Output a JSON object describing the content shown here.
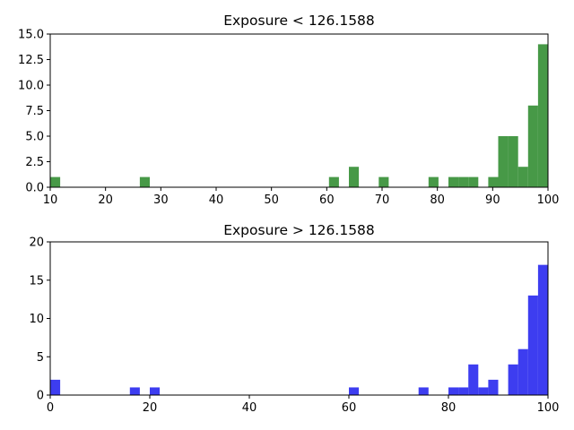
{
  "chart_data": [
    {
      "type": "bar",
      "title": "Exposure < 126.1588",
      "xlabel": "",
      "ylabel": "",
      "color": "#2e8b2e",
      "xlim": [
        10,
        100
      ],
      "ylim": [
        0,
        15
      ],
      "xticks": [
        10,
        20,
        30,
        40,
        50,
        60,
        70,
        80,
        90,
        100
      ],
      "yticks": [
        "0.0",
        "2.5",
        "5.0",
        "7.5",
        "10.0",
        "12.5",
        "15.0"
      ],
      "bin_width": 1.8,
      "bins": [
        {
          "x0": 10.0,
          "count": 1
        },
        {
          "x0": 26.2,
          "count": 1
        },
        {
          "x0": 60.4,
          "count": 1
        },
        {
          "x0": 64.0,
          "count": 2
        },
        {
          "x0": 69.4,
          "count": 1
        },
        {
          "x0": 78.4,
          "count": 1
        },
        {
          "x0": 82.0,
          "count": 1
        },
        {
          "x0": 83.8,
          "count": 1
        },
        {
          "x0": 85.6,
          "count": 1
        },
        {
          "x0": 89.2,
          "count": 1
        },
        {
          "x0": 91.0,
          "count": 5
        },
        {
          "x0": 92.8,
          "count": 5
        },
        {
          "x0": 94.6,
          "count": 2
        },
        {
          "x0": 96.4,
          "count": 8
        },
        {
          "x0": 98.2,
          "count": 14
        }
      ]
    },
    {
      "type": "bar",
      "title": "Exposure > 126.1588",
      "xlabel": "",
      "ylabel": "",
      "color": "#2222ee",
      "xlim": [
        0,
        100
      ],
      "ylim": [
        0,
        20
      ],
      "xticks": [
        0,
        20,
        40,
        60,
        80,
        100
      ],
      "yticks": [
        "0",
        "5",
        "10",
        "15",
        "20"
      ],
      "bin_width": 2.0,
      "bins": [
        {
          "x0": 0,
          "count": 2
        },
        {
          "x0": 16,
          "count": 1
        },
        {
          "x0": 20,
          "count": 1
        },
        {
          "x0": 60,
          "count": 1
        },
        {
          "x0": 74,
          "count": 1
        },
        {
          "x0": 80,
          "count": 1
        },
        {
          "x0": 82,
          "count": 1
        },
        {
          "x0": 84,
          "count": 4
        },
        {
          "x0": 86,
          "count": 1
        },
        {
          "x0": 88,
          "count": 2
        },
        {
          "x0": 92,
          "count": 4
        },
        {
          "x0": 94,
          "count": 6
        },
        {
          "x0": 96,
          "count": 13
        },
        {
          "x0": 98,
          "count": 17
        }
      ]
    }
  ]
}
